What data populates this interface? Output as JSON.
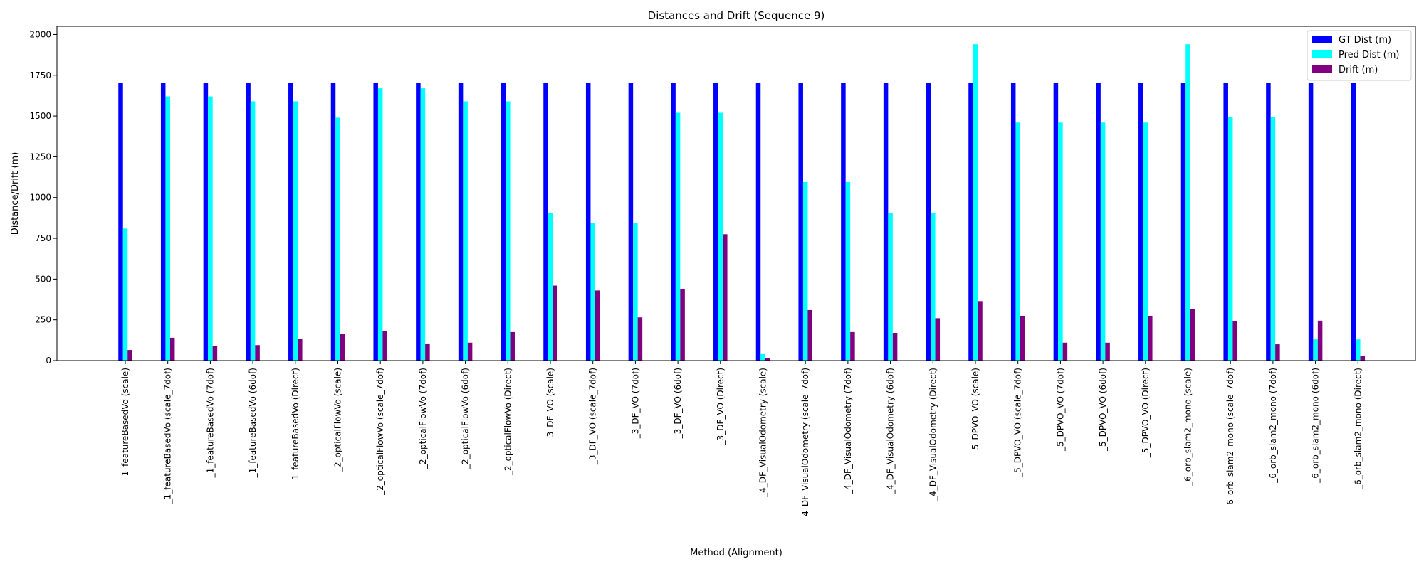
{
  "chart_data": {
    "type": "bar",
    "title": "Distances and Drift (Sequence 9)",
    "xlabel": "Method (Alignment)",
    "ylabel": "Distance/Drift (m)",
    "ylim": [
      0,
      2050
    ],
    "yticks": [
      0,
      250,
      500,
      750,
      1000,
      1250,
      1500,
      1750,
      2000
    ],
    "grid": false,
    "legend_position": "top-right",
    "categories": [
      "_1_featureBasedVo (scale)",
      "_1_featureBasedVo (scale_7dof)",
      "_1_featureBasedVo (7dof)",
      "_1_featureBasedVo (6dof)",
      "_1_featureBasedVo (Direct)",
      "_2_opticalFlowVo (scale)",
      "_2_opticalFlowVo (scale_7dof)",
      "_2_opticalFlowVo (7dof)",
      "_2_opticalFlowVo (6dof)",
      "_2_opticalFlowVo (Direct)",
      "_3_DF_VO (scale)",
      "_3_DF_VO (scale_7dof)",
      "_3_DF_VO (7dof)",
      "_3_DF_VO (6dof)",
      "_3_DF_VO (Direct)",
      "_4_DF_VisualOdometry (scale)",
      "_4_DF_VisualOdometry (scale_7dof)",
      "_4_DF_VisualOdometry (7dof)",
      "_4_DF_VisualOdometry (6dof)",
      "_4_DF_VisualOdometry (Direct)",
      "_5_DPVO_VO (scale)",
      "_5_DPVO_VO (scale_7dof)",
      "_5_DPVO_VO (7dof)",
      "_5_DPVO_VO (6dof)",
      "_5_DPVO_VO (Direct)",
      "_6_orb_slam2_mono (scale)",
      "_6_orb_slam2_mono (scale_7dof)",
      "_6_orb_slam2_mono (7dof)",
      "_6_orb_slam2_mono (6dof)",
      "_6_orb_slam2_mono (Direct)"
    ],
    "series": [
      {
        "name": "GT Dist (m)",
        "color": "#0000ff",
        "values": [
          1705,
          1705,
          1705,
          1705,
          1705,
          1705,
          1705,
          1705,
          1705,
          1705,
          1705,
          1705,
          1705,
          1705,
          1705,
          1705,
          1705,
          1705,
          1705,
          1705,
          1705,
          1705,
          1705,
          1705,
          1705,
          1705,
          1705,
          1705,
          1705,
          1705
        ]
      },
      {
        "name": "Pred Dist (m)",
        "color": "#00ffff",
        "values": [
          810,
          1620,
          1620,
          1590,
          1590,
          1490,
          1670,
          1670,
          1590,
          1590,
          905,
          845,
          845,
          1520,
          1520,
          40,
          1095,
          1095,
          905,
          905,
          1940,
          1460,
          1460,
          1460,
          1460,
          1940,
          1495,
          1495,
          130,
          130
        ]
      },
      {
        "name": "Drift (m)",
        "color": "#800080",
        "values": [
          65,
          140,
          90,
          95,
          135,
          165,
          180,
          105,
          110,
          175,
          460,
          430,
          265,
          440,
          775,
          15,
          310,
          175,
          170,
          260,
          365,
          275,
          110,
          110,
          275,
          315,
          240,
          100,
          245,
          30
        ]
      }
    ]
  }
}
